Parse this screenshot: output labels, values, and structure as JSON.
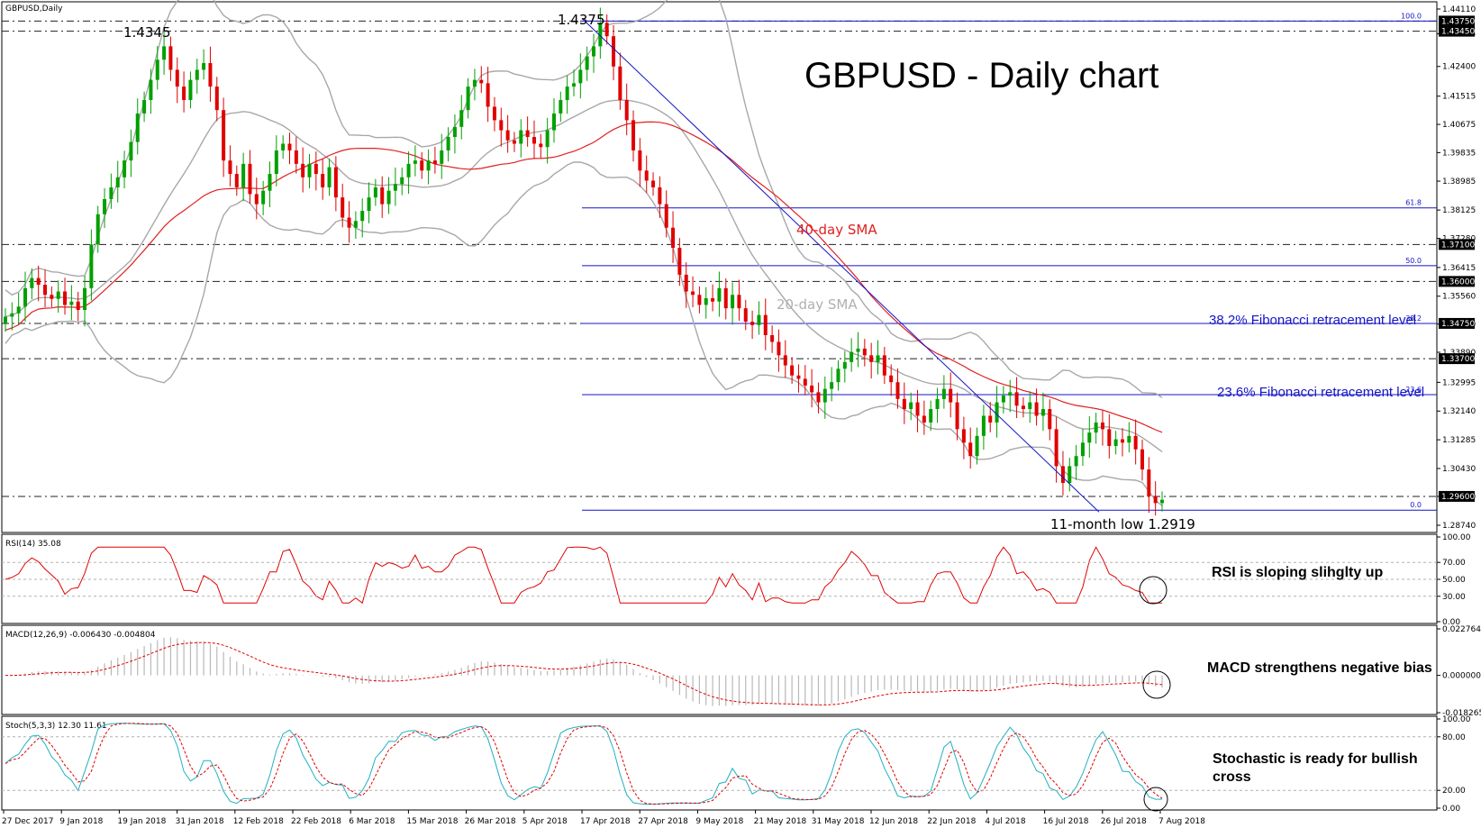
{
  "chart_data": [
    {
      "type": "candlestick",
      "name_label": "GBPUSD,Daily",
      "title": "GBPUSD - Daily chart",
      "x_ticks": [
        "27 Dec 2017",
        "9 Jan 2018",
        "19 Jan 2018",
        "31 Jan 2018",
        "12 Feb 2018",
        "22 Feb 2018",
        "6 Mar 2018",
        "15 Mar 2018",
        "26 Mar 2018",
        "5 Apr 2018",
        "17 Apr 2018",
        "27 Apr 2018",
        "9 May 2018",
        "21 May 2018",
        "31 May 2018",
        "12 Jun 2018",
        "22 Jun 2018",
        "4 Jul 2018",
        "16 Jul 2018",
        "26 Jul 2018",
        "7 Aug 2018"
      ],
      "y_ticks": [
        "1.44110",
        "1.43375",
        "1.42400",
        "1.41515",
        "1.40675",
        "1.39835",
        "1.38985",
        "1.38125",
        "1.37280",
        "1.36415",
        "1.35560",
        "1.34730",
        "1.33890",
        "1.32995",
        "1.32140",
        "1.31285",
        "1.30430",
        "1.29600",
        "1.28740"
      ],
      "ylim": [
        1.2874,
        1.4411
      ],
      "price_tags": [
        "1.43750",
        "1.43450",
        "1.37100",
        "1.36000",
        "1.34750",
        "1.33700",
        "1.29600"
      ],
      "horizontal_levels": [
        1.4375,
        1.4345,
        1.371,
        1.36,
        1.3475,
        1.337,
        1.296
      ],
      "fibonacci": {
        "high": 1.4375,
        "low": 1.2919,
        "levels": [
          {
            "label": "100.0",
            "value": 1.4375
          },
          {
            "label": "61.8",
            "value": 1.3819
          },
          {
            "label": "50.0",
            "value": 1.3647
          },
          {
            "label": "38.2",
            "value": 1.3475
          },
          {
            "label": "23.6",
            "value": 1.3263
          },
          {
            "label": "0.0",
            "value": 1.2919
          }
        ]
      },
      "annotations": {
        "high1": "1.4345",
        "high2": "1.4375",
        "sma40": "40-day SMA",
        "sma20": "20-day SMA",
        "fib382": "38.2% Fibonacci retracement level",
        "fib236": "23.6% Fibonacci retracement level",
        "low": "11-month low 1.2919"
      },
      "series_closes": [
        1.3495,
        1.3505,
        1.3525,
        1.358,
        1.361,
        1.359,
        1.356,
        1.3548,
        1.357,
        1.353,
        1.354,
        1.3515,
        1.358,
        1.371,
        1.38,
        1.3845,
        1.388,
        1.391,
        1.396,
        1.4015,
        1.41,
        1.414,
        1.42,
        1.426,
        1.43,
        1.423,
        1.418,
        1.414,
        1.42,
        1.423,
        1.425,
        1.418,
        1.411,
        1.396,
        1.392,
        1.388,
        1.395,
        1.386,
        1.383,
        1.387,
        1.392,
        1.399,
        1.401,
        1.399,
        1.395,
        1.391,
        1.395,
        1.392,
        1.388,
        1.394,
        1.385,
        1.379,
        1.376,
        1.378,
        1.381,
        1.385,
        1.388,
        1.383,
        1.387,
        1.389,
        1.391,
        1.395,
        1.396,
        1.393,
        1.396,
        1.395,
        1.399,
        1.403,
        1.406,
        1.411,
        1.418,
        1.42,
        1.419,
        1.412,
        1.408,
        1.405,
        1.402,
        1.401,
        1.405,
        1.403,
        1.401,
        1.4,
        1.405,
        1.41,
        1.414,
        1.418,
        1.419,
        1.423,
        1.427,
        1.43,
        1.437,
        1.433,
        1.424,
        1.414,
        1.408,
        1.399,
        1.393,
        1.39,
        1.388,
        1.383,
        1.376,
        1.37,
        1.362,
        1.357,
        1.356,
        1.353,
        1.355,
        1.354,
        1.358,
        1.352,
        1.356,
        1.352,
        1.348,
        1.347,
        1.35,
        1.344,
        1.342,
        1.338,
        1.335,
        1.332,
        1.331,
        1.329,
        1.327,
        1.324,
        1.328,
        1.33,
        1.334,
        1.336,
        1.339,
        1.34,
        1.338,
        1.336,
        1.338,
        1.332,
        1.33,
        1.325,
        1.322,
        1.324,
        1.32,
        1.318,
        1.322,
        1.325,
        1.328,
        1.324,
        1.316,
        1.312,
        1.308,
        1.314,
        1.32,
        1.318,
        1.324,
        1.326,
        1.327,
        1.323,
        1.322,
        1.324,
        1.32,
        1.322,
        1.316,
        1.305,
        1.3,
        1.305,
        1.308,
        1.312,
        1.315,
        1.318,
        1.316,
        1.311,
        1.313,
        1.312,
        1.314,
        1.31,
        1.304,
        1.296,
        1.294,
        1.295
      ]
    },
    {
      "type": "line",
      "name_label": "RSI(14) 35.08",
      "ylim": [
        0,
        100
      ],
      "y_ticks": [
        "100.00",
        "70.00",
        "50.00",
        "30.00",
        "0.00"
      ],
      "annotation": "RSI is sloping slihglty up"
    },
    {
      "type": "bar",
      "name_label": "MACD(12,26,9) -0.006430 -0.004804",
      "ylim": [
        -0.018265,
        0.022764
      ],
      "y_ticks": [
        "0.022764",
        "0.000000",
        "-0.018265"
      ],
      "annotation": "MACD strengthens negative bias"
    },
    {
      "type": "line",
      "name_label": "Stoch(5,3,3) 12.30 11.61",
      "ylim": [
        0,
        100
      ],
      "y_ticks": [
        "100.00",
        "80.00",
        "20.00",
        "0.00"
      ],
      "annotation": "Stochastic is ready for bullish cross"
    }
  ],
  "colors": {
    "bull": "#00a000",
    "bear": "#e00000",
    "sma40": "#e02020",
    "bands": "#a8a8a8",
    "fib": "#1414c8",
    "stoch_main": "#20b0c0",
    "signal": "#e00000"
  }
}
